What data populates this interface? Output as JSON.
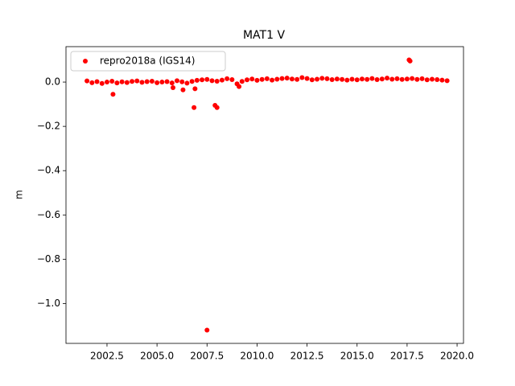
{
  "chart_data": {
    "type": "scatter",
    "title": "MAT1 V",
    "y_label": "m",
    "series": [
      {
        "name": "repro2018a (IGS14)",
        "color": "#ff0000",
        "x": [
          2001.5,
          2001.75,
          2002.0,
          2002.25,
          2002.5,
          2002.75,
          2003.0,
          2003.25,
          2003.5,
          2003.75,
          2004.0,
          2004.25,
          2004.5,
          2004.75,
          2005.0,
          2005.25,
          2005.5,
          2005.75,
          2006.0,
          2006.25,
          2006.5,
          2006.75,
          2007.0,
          2007.25,
          2007.5,
          2007.75,
          2008.0,
          2008.25,
          2008.5,
          2008.75,
          2009.0,
          2009.25,
          2009.5,
          2009.75,
          2010.0,
          2010.25,
          2010.5,
          2010.75,
          2011.0,
          2011.25,
          2011.5,
          2011.75,
          2012.0,
          2012.25,
          2012.5,
          2012.75,
          2013.0,
          2013.25,
          2013.5,
          2013.75,
          2014.0,
          2014.25,
          2014.5,
          2014.75,
          2015.0,
          2015.25,
          2015.5,
          2015.75,
          2016.0,
          2016.25,
          2016.5,
          2016.75,
          2017.0,
          2017.25,
          2017.5,
          2017.75,
          2018.0,
          2018.25,
          2018.5,
          2018.75,
          2019.0,
          2019.25,
          2019.5,
          2002.8,
          2005.8,
          2006.3,
          2006.85,
          2006.9,
          2007.5,
          2007.9,
          2008.0,
          2009.1,
          2017.6,
          2017.65
        ],
        "values": [
          0.005,
          -0.003,
          0.002,
          -0.006,
          0.0,
          0.004,
          -0.004,
          0.001,
          -0.002,
          0.003,
          0.005,
          -0.001,
          0.002,
          0.004,
          -0.003,
          0.0,
          0.002,
          -0.004,
          0.006,
          0.001,
          -0.005,
          0.003,
          0.008,
          0.01,
          0.012,
          0.006,
          0.004,
          0.009,
          0.015,
          0.011,
          -0.008,
          0.003,
          0.01,
          0.014,
          0.008,
          0.012,
          0.015,
          0.009,
          0.013,
          0.016,
          0.018,
          0.014,
          0.012,
          0.02,
          0.016,
          0.01,
          0.013,
          0.017,
          0.015,
          0.011,
          0.014,
          0.012,
          0.009,
          0.013,
          0.01,
          0.014,
          0.012,
          0.016,
          0.011,
          0.014,
          0.018,
          0.013,
          0.015,
          0.012,
          0.014,
          0.016,
          0.012,
          0.015,
          0.01,
          0.013,
          0.011,
          0.009,
          0.006,
          -0.055,
          -0.025,
          -0.035,
          -0.115,
          -0.03,
          -1.12,
          -0.105,
          -0.115,
          -0.02,
          0.1,
          0.095
        ]
      }
    ],
    "xlim": [
      2000.45,
      2020.32
    ],
    "ylim": [
      -1.18,
      0.16
    ],
    "xticks": [
      2002.5,
      {
        "value": 2005.0,
        "label": "2005.0"
      },
      2007.5,
      {
        "value": 2010.0,
        "label": "2010.0"
      },
      2012.5,
      {
        "value": 2015.0,
        "label": "2015.0"
      },
      2017.5,
      {
        "value": 2020.0,
        "label": "2020.0"
      }
    ],
    "yticks": [
      {
        "value": -1.0,
        "label": "−1.0"
      },
      {
        "value": -0.8,
        "label": "−0.8"
      },
      {
        "value": -0.6,
        "label": "−0.6"
      },
      {
        "value": -0.4,
        "label": "−0.4"
      },
      {
        "value": -0.2,
        "label": "−0.2"
      },
      {
        "value": 0.0,
        "label": "0.0"
      }
    ],
    "legend": "upper left"
  }
}
